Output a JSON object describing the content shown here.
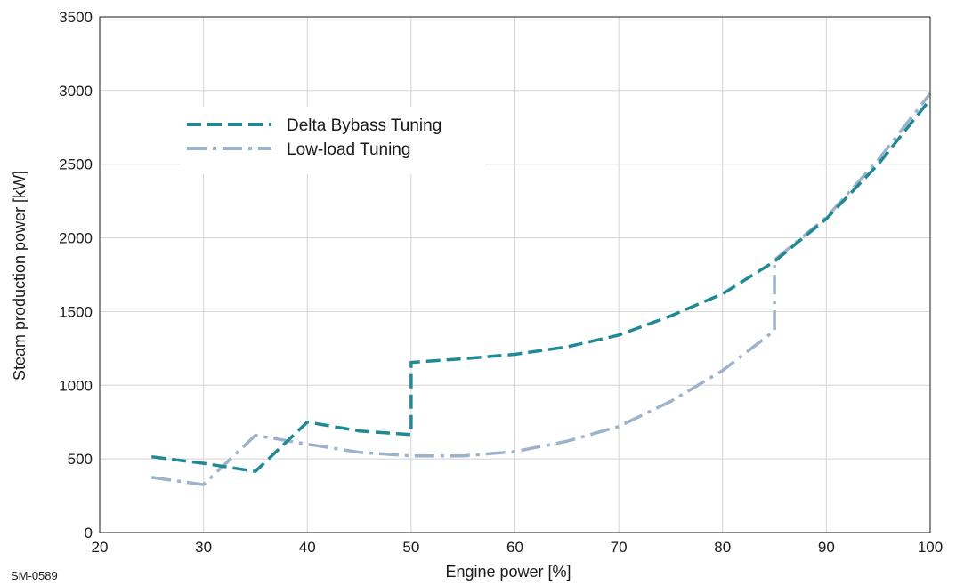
{
  "figure_code": "SM-0589",
  "chart_data": {
    "type": "line",
    "title": "",
    "xlabel": "Engine power [%]",
    "ylabel": "Steam production power [kW]",
    "xlim": [
      20,
      100
    ],
    "ylim": [
      0,
      3500
    ],
    "xticks": [
      20,
      30,
      40,
      50,
      60,
      70,
      80,
      90,
      100
    ],
    "yticks": [
      0,
      500,
      1000,
      1500,
      2000,
      2500,
      3000,
      3500
    ],
    "grid": true,
    "legend_position": "top-left",
    "series": [
      {
        "name": "Delta Bybass Tuning",
        "color": "#1e8a96",
        "style": "dashed",
        "x": [
          25,
          30,
          35,
          40,
          45,
          50,
          50,
          55,
          60,
          65,
          70,
          75,
          80,
          85,
          90,
          95,
          100
        ],
        "y": [
          515,
          470,
          415,
          750,
          690,
          665,
          1155,
          1180,
          1210,
          1260,
          1340,
          1470,
          1620,
          1840,
          2130,
          2500,
          2940
        ]
      },
      {
        "name": "Low-load Tuning",
        "color": "#9db3cc",
        "style": "dashdot",
        "x": [
          25,
          30,
          35,
          40,
          45,
          50,
          55,
          60,
          65,
          70,
          75,
          80,
          85,
          85,
          90,
          95,
          100
        ],
        "y": [
          375,
          325,
          660,
          600,
          545,
          520,
          520,
          550,
          620,
          720,
          890,
          1100,
          1370,
          1850,
          2140,
          2530,
          2980
        ]
      }
    ]
  }
}
